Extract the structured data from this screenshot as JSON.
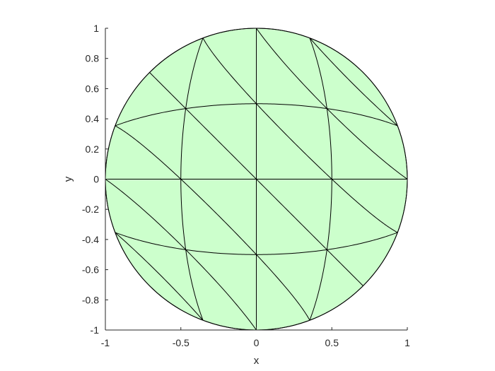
{
  "chart_data": {
    "type": "mesh",
    "title": "",
    "xlabel": "x",
    "ylabel": "y",
    "xlim": [
      -1,
      1
    ],
    "ylim": [
      -1,
      1
    ],
    "xticks": [
      -1,
      -0.5,
      0,
      0.5,
      1
    ],
    "xtick_labels": [
      "-1",
      "-0.5",
      "0",
      "0.5",
      "1"
    ],
    "yticks": [
      -1,
      -0.8,
      -0.6,
      -0.4,
      -0.2,
      0,
      0.2,
      0.4,
      0.6,
      0.8,
      1
    ],
    "ytick_labels": [
      "-1",
      "-0.8",
      "-0.6",
      "-0.4",
      "-0.2",
      "0",
      "0.2",
      "0.4",
      "0.6",
      "0.8",
      "1"
    ],
    "grid": false,
    "region": {
      "shape": "unit disk",
      "center": [
        0,
        0
      ],
      "radius": 1,
      "fill_color": "#ccffcc",
      "edge_color": "#000000"
    },
    "mesh": {
      "description": "quarter-element-per-square mapping of square [-1,1]^2 to disk, 4x4 squares split by diagonals",
      "grid_coords": [
        -1,
        -0.5,
        0,
        0.5,
        1
      ],
      "edge_color": "#000000"
    }
  }
}
